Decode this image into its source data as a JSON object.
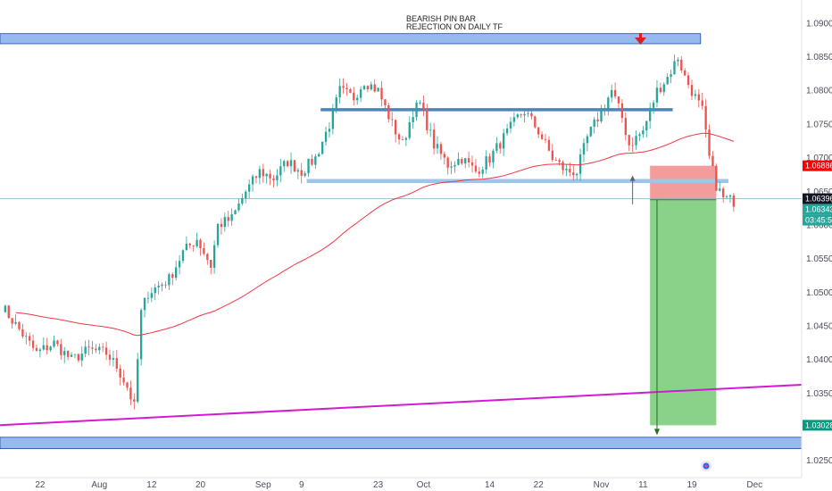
{
  "annotation": {
    "line1": "BEARISH PIN BAR",
    "line2": "REJECTION ON DAILY TF"
  },
  "price_badges": [
    {
      "text": "1.06886",
      "color": "#ff0000",
      "price": 1.06886
    },
    {
      "text": "1.06396",
      "color": "#131722",
      "price": 1.06396
    },
    {
      "text": "1.06343",
      "color": "#26a69a",
      "price": 1.06343
    },
    {
      "text": "03:45:51",
      "color": "#26a69a",
      "price": 1.0622
    },
    {
      "text": "1.03028",
      "color": "#089981",
      "price": 1.03028
    }
  ],
  "colors": {
    "bull": "#26a69a",
    "bear": "#ef5350",
    "ema": "#f23645",
    "zone_fill": "#6a9be8",
    "zone_stroke": "#1e4fa3",
    "level": "#4a84c2",
    "support": "#9fc5ea",
    "stop": "#f28b8b",
    "target": "#75c975",
    "trendline": "#d31ad3",
    "arrow": "#e01e1e",
    "axis_text": "#4a4f5a",
    "grid": "#f0f3fa"
  },
  "chart_data": {
    "type": "candlestick",
    "title": "",
    "y_ticks": [
      "1.09000",
      "1.08500",
      "1.08000",
      "1.07500",
      "1.07000",
      "1.06500",
      "1.06000",
      "1.05500",
      "1.05000",
      "1.04500",
      "1.04000",
      "1.03500",
      "1.03000",
      "1.02500"
    ],
    "y_tick_values": [
      1.09,
      1.085,
      1.08,
      1.075,
      1.07,
      1.065,
      1.06,
      1.055,
      1.05,
      1.045,
      1.04,
      1.035,
      1.03,
      1.025
    ],
    "ylim": [
      1.0225,
      1.0935
    ],
    "x_ticks": [
      "22",
      "Aug",
      "12",
      "20",
      "Sep",
      "9",
      "23",
      "Oct",
      "14",
      "22",
      "Nov",
      "11",
      "19",
      "Dec"
    ],
    "x_tick_positions_bar_index": [
      11,
      28,
      43,
      57,
      75,
      86,
      108,
      121,
      140,
      154,
      172,
      184,
      198,
      216
    ],
    "num_bars": 230,
    "grid": false,
    "zones": [
      {
        "name": "resistance-zone",
        "from_bar": 0,
        "to_bar": 201,
        "low": 1.087,
        "high": 1.0885
      },
      {
        "name": "support-zone",
        "from_bar": 0,
        "to_bar": 230,
        "low": 1.0268,
        "high": 1.0285
      }
    ],
    "levels": [
      {
        "name": "range-top",
        "from_bar": 92,
        "to_bar": 193,
        "price": 1.0772
      },
      {
        "name": "range-bottom",
        "from_bar": 88,
        "to_bar": 209,
        "price": 1.0666
      },
      {
        "name": "current-price",
        "from_bar": 0,
        "to_bar": 230,
        "price": 1.06396
      }
    ],
    "trendline": {
      "from": [
        0,
        1.0303
      ],
      "to": [
        230,
        1.0363
      ]
    },
    "position": {
      "from_bar": 186,
      "to_bar": 205,
      "entry": 1.0638,
      "stop": 1.06886,
      "target": 1.03028
    },
    "ohlc": []
  }
}
